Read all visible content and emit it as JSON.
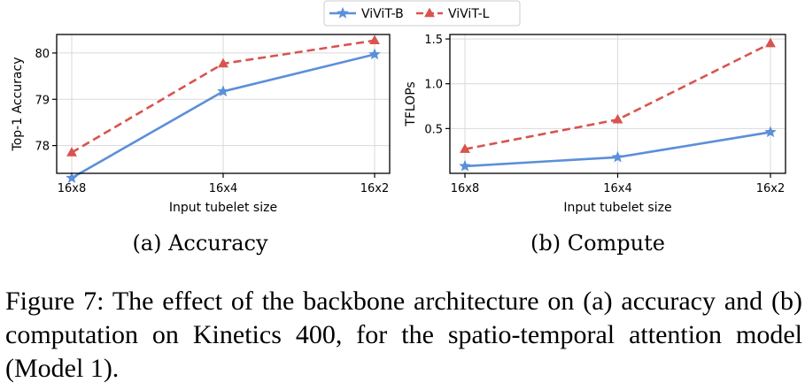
{
  "legend": {
    "items": [
      {
        "label": "ViViT-B",
        "color": "#5b8fd9",
        "marker": "star",
        "dash": "solid"
      },
      {
        "label": "ViViT-L",
        "color": "#d9534f",
        "marker": "triangle",
        "dash": "dashed"
      }
    ]
  },
  "chart_data": [
    {
      "type": "line",
      "title": "",
      "subcaption": "(a) Accuracy",
      "xlabel": "Input tubelet size",
      "ylabel": "Top-1 Accuracy",
      "categories": [
        "16x8",
        "16x4",
        "16x2"
      ],
      "ylim": [
        77.4,
        80.4
      ],
      "yticks": [
        78,
        79,
        80
      ],
      "ytick_labels": [
        "78",
        "79",
        "80"
      ],
      "grid": true,
      "series": [
        {
          "name": "ViViT-B",
          "values": [
            77.3,
            79.17,
            79.97
          ]
        },
        {
          "name": "ViViT-L",
          "values": [
            77.85,
            79.77,
            80.27
          ]
        }
      ]
    },
    {
      "type": "line",
      "title": "",
      "subcaption": "(b) Compute",
      "xlabel": "Input tubelet size",
      "ylabel": "TFLOPs",
      "categories": [
        "16x8",
        "16x4",
        "16x2"
      ],
      "ylim": [
        0.0,
        1.55
      ],
      "yticks": [
        0.5,
        1.0,
        1.5
      ],
      "ytick_labels": [
        "0.5",
        "1.0",
        "1.5"
      ],
      "grid": true,
      "series": [
        {
          "name": "ViViT-B",
          "values": [
            0.08,
            0.18,
            0.46
          ]
        },
        {
          "name": "ViViT-L",
          "values": [
            0.27,
            0.6,
            1.45
          ]
        }
      ]
    }
  ],
  "caption": "Figure 7: The effect of the backbone architecture on (a) accuracy and (b) computation on Kinetics 400, for the spatio-temporal attention model (Model 1)."
}
